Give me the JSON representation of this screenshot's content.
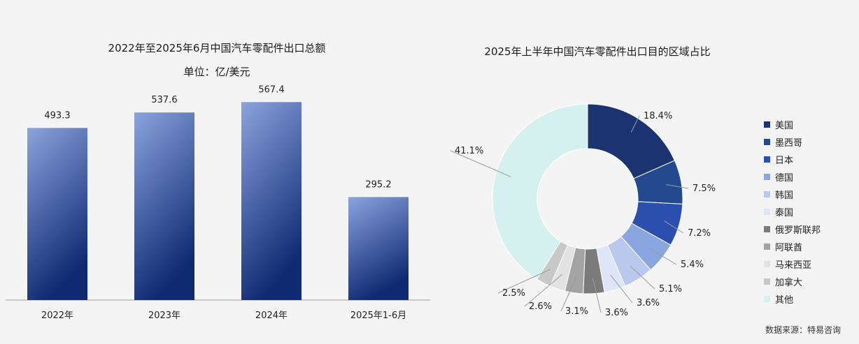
{
  "bar_chart": {
    "title": "2022年至2025年6月中国汽车零配件出口总额",
    "subtitle": "单位：亿/美元"
  },
  "donut_chart": {
    "title": "2025年上半年中国汽车零配件出口目的区域占比"
  },
  "source": "数据来源：特易咨询",
  "colors": {
    "bar_top": "#8aa4de",
    "bar_bottom": "#0f2a72",
    "slices": [
      "#1b3370",
      "#234a8e",
      "#2b4fae",
      "#8aa6e0",
      "#b9c9ee",
      "#dde6f7",
      "#7b7b7b",
      "#a3a3a3",
      "#e2e2e2",
      "#c8c8c8",
      "#d5f1ef"
    ]
  },
  "chart_data": [
    {
      "type": "bar",
      "title": "2022年至2025年6月中国汽车零配件出口总额",
      "subtitle": "单位：亿/美元",
      "categories": [
        "2022年",
        "2023年",
        "2024年",
        "2025年1-6月"
      ],
      "values": [
        493.3,
        537.6,
        567.4,
        295.2
      ],
      "value_labels": [
        "493.3",
        "537.6",
        "567.4",
        "295.2"
      ],
      "ylim": [
        0,
        600
      ]
    },
    {
      "type": "pie",
      "title": "2025年上半年中国汽车零配件出口目的区域占比",
      "labels": [
        "美国",
        "墨西哥",
        "日本",
        "德国",
        "韩国",
        "泰国",
        "俄罗斯联邦",
        "阿联酋",
        "马来西亚",
        "加拿大",
        "其他"
      ],
      "values": [
        18.4,
        7.5,
        7.2,
        5.4,
        5.1,
        3.6,
        3.6,
        3.1,
        2.6,
        2.5,
        41.1
      ],
      "value_labels": [
        "18.4%",
        "7.5%",
        "7.2%",
        "5.4%",
        "5.1%",
        "3.6%",
        "3.6%",
        "3.1%",
        "2.6%",
        "2.5%",
        "41.1%"
      ],
      "legend_position": "right"
    }
  ]
}
